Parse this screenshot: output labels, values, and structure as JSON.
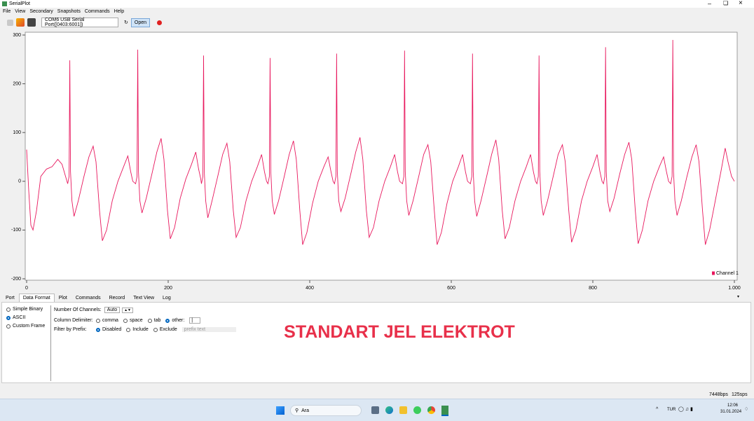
{
  "window": {
    "title": "SerialPlot"
  },
  "menu": [
    "File",
    "View",
    "Secondary",
    "Snapshots",
    "Commands",
    "Help"
  ],
  "toolbar": {
    "port": "COM6 USB Serial Port([0403:6001])",
    "open": "Open"
  },
  "chart_data": {
    "type": "line",
    "xlim": [
      0,
      1000
    ],
    "ylim": [
      -200,
      300
    ],
    "xticks": [
      0,
      200,
      400,
      600,
      800,
      {
        "value": 1000,
        "label": "1.000"
      }
    ],
    "yticks": [
      -200,
      -100,
      0,
      100,
      200,
      300
    ],
    "grid": false,
    "legend": "lower right",
    "x": [
      0,
      3,
      6,
      9,
      14,
      20,
      28,
      36,
      44,
      50,
      55,
      58,
      60,
      61,
      62,
      64,
      67,
      73,
      81,
      88,
      94,
      98,
      103,
      107,
      113,
      121,
      129,
      137,
      143,
      147,
      150,
      154,
      156,
      157,
      158,
      160,
      163,
      169,
      177,
      184,
      190,
      194,
      199,
      203,
      209,
      217,
      225,
      233,
      239,
      243,
      246,
      247,
      249,
      250,
      251,
      253,
      256,
      262,
      270,
      277,
      283,
      287,
      292,
      296,
      302,
      310,
      318,
      326,
      332,
      336,
      339,
      341,
      343,
      344,
      345,
      347,
      350,
      356,
      364,
      371,
      377,
      381,
      386,
      390,
      396,
      404,
      412,
      420,
      426,
      430,
      433,
      435,
      437,
      438,
      439,
      441,
      444,
      450,
      458,
      465,
      471,
      475,
      480,
      484,
      490,
      498,
      506,
      514,
      520,
      524,
      527,
      531,
      533,
      534,
      535,
      537,
      540,
      546,
      554,
      561,
      567,
      571,
      576,
      580,
      586,
      594,
      602,
      610,
      616,
      620,
      623,
      627,
      629,
      630,
      631,
      633,
      636,
      642,
      650,
      657,
      663,
      667,
      672,
      676,
      682,
      690,
      698,
      706,
      712,
      716,
      719,
      721,
      723,
      724,
      725,
      727,
      730,
      736,
      744,
      751,
      757,
      761,
      766,
      770,
      776,
      784,
      792,
      800,
      806,
      810,
      813,
      815,
      817,
      818,
      819,
      821,
      824,
      830,
      838,
      845,
      851,
      855,
      860,
      864,
      870,
      878,
      886,
      894,
      900,
      904,
      907,
      910,
      912,
      913,
      914,
      916,
      919,
      925,
      933,
      940,
      946,
      950,
      955,
      959,
      965,
      973,
      981,
      987,
      991,
      996,
      1000
    ],
    "series": [
      {
        "name": "Channel 1",
        "color": "#e8175d",
        "values": [
          65,
          -20,
          -90,
          -100,
          -60,
          10,
          25,
          30,
          45,
          35,
          10,
          -5,
          10,
          248,
          20,
          -40,
          -72,
          -40,
          10,
          50,
          72,
          40,
          -60,
          -122,
          -100,
          -40,
          0,
          30,
          52,
          20,
          0,
          -5,
          10,
          270,
          20,
          -40,
          -65,
          -35,
          15,
          60,
          88,
          45,
          -60,
          -118,
          -95,
          -35,
          5,
          35,
          60,
          25,
          5,
          -5,
          10,
          258,
          20,
          -40,
          -75,
          -40,
          10,
          55,
          78,
          40,
          -60,
          -115,
          -95,
          -40,
          0,
          30,
          55,
          20,
          0,
          -5,
          10,
          253,
          20,
          -40,
          -68,
          -40,
          10,
          55,
          83,
          45,
          -60,
          -130,
          -105,
          -45,
          0,
          30,
          50,
          20,
          0,
          -5,
          10,
          262,
          20,
          -40,
          -62,
          -35,
          15,
          60,
          90,
          45,
          -60,
          -115,
          -95,
          -40,
          0,
          30,
          55,
          20,
          0,
          -5,
          10,
          268,
          20,
          -40,
          -70,
          -40,
          10,
          55,
          75,
          40,
          -60,
          -130,
          -105,
          -45,
          0,
          30,
          55,
          20,
          0,
          -5,
          10,
          262,
          20,
          -40,
          -72,
          -40,
          10,
          55,
          85,
          45,
          -60,
          -118,
          -95,
          -40,
          0,
          30,
          55,
          20,
          0,
          -5,
          10,
          258,
          20,
          -40,
          -70,
          -40,
          10,
          55,
          75,
          40,
          -60,
          -125,
          -100,
          -40,
          0,
          30,
          55,
          20,
          0,
          -5,
          10,
          275,
          20,
          -40,
          -62,
          -35,
          15,
          55,
          80,
          45,
          -60,
          -128,
          -100,
          -40,
          0,
          30,
          50,
          20,
          0,
          -5,
          10,
          290,
          20,
          -40,
          -70,
          -40,
          10,
          50,
          75,
          40,
          -60,
          -130,
          -100,
          -40,
          20,
          68,
          40,
          10,
          0
        ]
      }
    ]
  },
  "tabs": [
    {
      "label": "Port",
      "active": false
    },
    {
      "label": "Data Format",
      "active": true
    },
    {
      "label": "Plot",
      "active": false
    },
    {
      "label": "Commands",
      "active": false
    },
    {
      "label": "Record",
      "active": false
    },
    {
      "label": "Text View",
      "active": false
    },
    {
      "label": "Log",
      "active": false
    }
  ],
  "data_format": {
    "formats": [
      {
        "label": "Simple Binary",
        "selected": false
      },
      {
        "label": "ASCII",
        "selected": true
      },
      {
        "label": "Custom Frame",
        "selected": false
      }
    ],
    "channels_label": "Number Of Channels:",
    "channels_value": "Auto",
    "delimiter_label": "Column Delimiter:",
    "delimiters": [
      {
        "label": "comma",
        "selected": false
      },
      {
        "label": "space",
        "selected": false
      },
      {
        "label": "tab",
        "selected": false
      },
      {
        "label": "other:",
        "selected": true
      }
    ],
    "other_value": "|",
    "prefix_label": "Filter by Prefix:",
    "prefix_options": [
      {
        "label": "Disabled",
        "selected": true
      },
      {
        "label": "Include",
        "selected": false
      },
      {
        "label": "Exclude",
        "selected": false
      }
    ],
    "prefix_placeholder": "prefix text"
  },
  "annotation": "STANDART JEL ELEKTROT",
  "status": {
    "rate": "7448bps",
    "samples": "125sps"
  },
  "taskbar": {
    "search": "Ara",
    "lang": "TUR",
    "time": "12:06",
    "date": "31.01.2024"
  }
}
